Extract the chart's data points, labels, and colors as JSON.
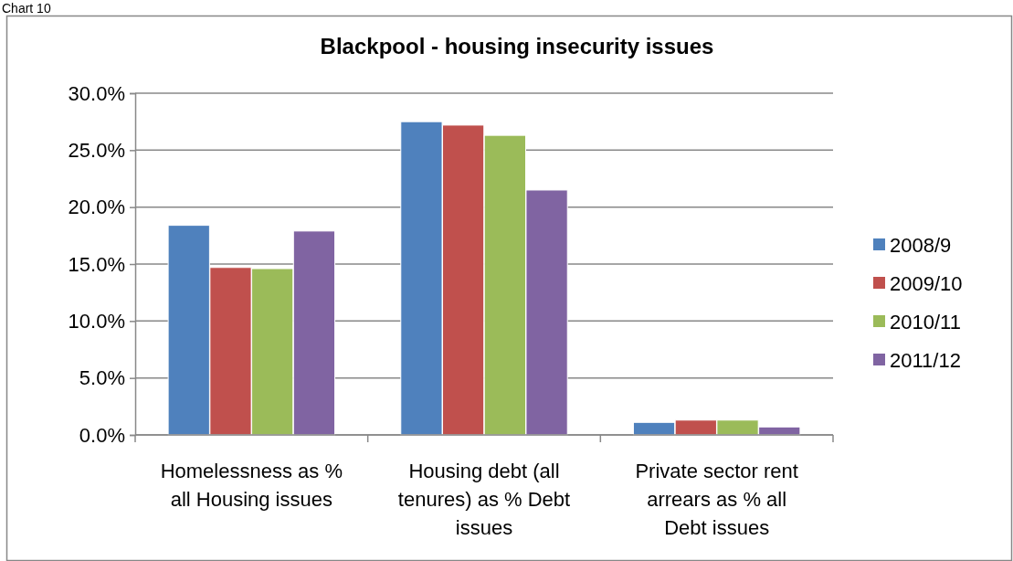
{
  "chart_data": {
    "type": "bar",
    "title": "Blackpool - housing insecurity issues",
    "annotations": [
      "Chart 10"
    ],
    "categories": [
      "Homelessness as % all Housing issues",
      "Housing debt (all tenures) as % Debt issues",
      "Private sector rent arrears as % all Debt issues"
    ],
    "series": [
      {
        "name": "2008/9",
        "color": "#4f81bd",
        "values": [
          18.4,
          27.5,
          1.1
        ]
      },
      {
        "name": "2009/10",
        "color": "#c0504d",
        "values": [
          14.7,
          27.2,
          1.3
        ]
      },
      {
        "name": "2010/11",
        "color": "#9bbb59",
        "values": [
          14.6,
          26.3,
          1.3
        ]
      },
      {
        "name": "2011/12",
        "color": "#8064a2",
        "values": [
          17.9,
          21.5,
          0.7
        ]
      }
    ],
    "ylim": [
      0,
      30
    ],
    "yticks": [
      {
        "value": 0,
        "label": "0.0%"
      },
      {
        "value": 5,
        "label": "5.0%"
      },
      {
        "value": 10,
        "label": "10.0%"
      },
      {
        "value": 15,
        "label": "15.0%"
      },
      {
        "value": 20,
        "label": "20.0%"
      },
      {
        "value": 25,
        "label": "25.0%"
      },
      {
        "value": 30,
        "label": "30.0%"
      }
    ],
    "grid": "y",
    "legend": "right"
  }
}
